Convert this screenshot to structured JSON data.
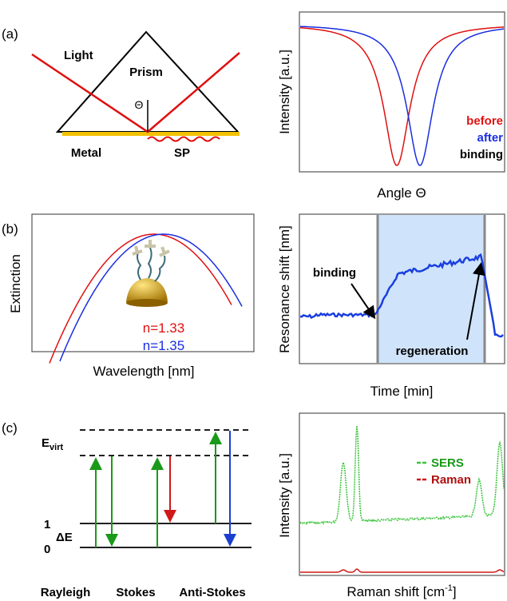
{
  "panel_a": {
    "label": "(a)",
    "diagram": {
      "light": "Light",
      "prism": "Prism",
      "angle": "Θ",
      "metal": "Metal",
      "sp": "SP"
    },
    "plot": {
      "y_label": "Intensity [a.u.]",
      "x_label": "Angle Θ",
      "legend": [
        "before",
        "after",
        "binding"
      ]
    }
  },
  "panel_b": {
    "label": "(b)",
    "left_plot": {
      "y_label": "Extinction",
      "x_label": "Wavelength [nm]",
      "legend": [
        "n=1.33",
        "n=1.35"
      ]
    },
    "right_plot": {
      "y_label": "Resonance shift [nm]",
      "x_label": "Time [min]",
      "annotations": [
        "binding",
        "regeneration"
      ]
    }
  },
  "panel_c": {
    "label": "(c)",
    "diagram": {
      "e_virt": {
        "main": "E",
        "sub": "virt"
      },
      "level_1": "1",
      "delta_e": "ΔE",
      "level_0": "0",
      "processes": [
        "Rayleigh",
        "Stokes",
        "Anti-Stokes"
      ]
    },
    "plot": {
      "y_label": "Intensity [a.u.]",
      "x_label": {
        "main": "Raman shift [cm",
        "sup": "-1",
        "end": "]"
      },
      "legend": [
        "SERS",
        "Raman"
      ]
    }
  }
}
